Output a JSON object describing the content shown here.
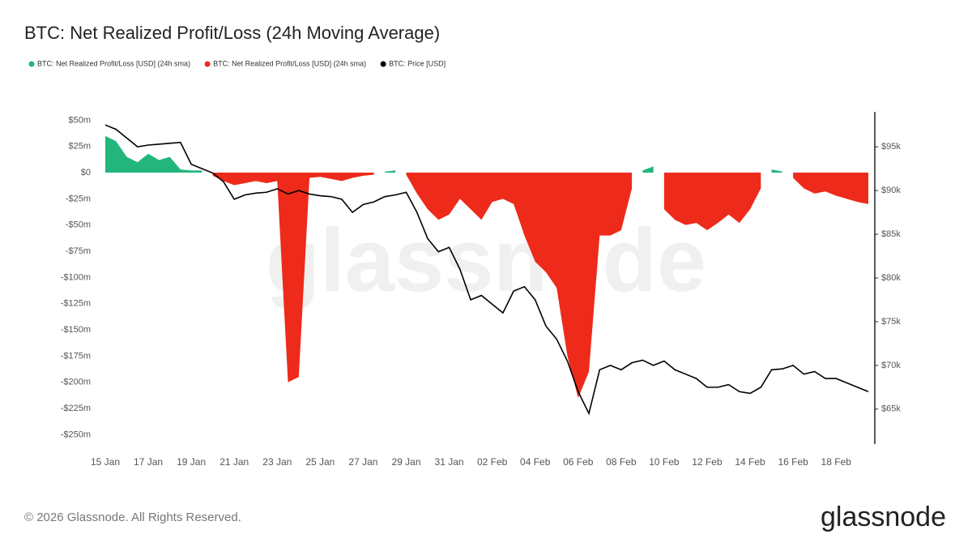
{
  "chart_data": {
    "type": "area",
    "title": "BTC: Net Realized Profit/Loss (24h Moving Average)",
    "watermark": "glassnode",
    "footer": "© 2026 Glassnode. All Rights Reserved.",
    "brand": "glassnode",
    "grid": false,
    "legend": "top-left",
    "categories": [
      "15 Jan",
      null,
      null,
      null,
      "17 Jan",
      null,
      null,
      null,
      "19 Jan",
      null,
      null,
      null,
      "21 Jan",
      null,
      null,
      null,
      "23 Jan",
      null,
      null,
      null,
      "25 Jan",
      null,
      null,
      null,
      "27 Jan",
      null,
      null,
      null,
      "29 Jan",
      null,
      null,
      null,
      "31 Jan",
      null,
      null,
      null,
      "02 Feb",
      null,
      null,
      null,
      "04 Feb",
      null,
      null,
      null,
      "06 Feb",
      null,
      null,
      null,
      "08 Feb",
      null,
      null,
      null,
      "10 Feb",
      null,
      null,
      null,
      "12 Feb",
      null,
      null,
      null,
      "14 Feb",
      null,
      null,
      null,
      "16 Feb",
      null,
      null,
      null,
      "18 Feb",
      null,
      null,
      null
    ],
    "ylim": [
      -259000000,
      58000000
    ],
    "yticks": [
      {
        "value": 50000000,
        "label": "$50m"
      },
      {
        "value": 25000000,
        "label": "$25m"
      },
      {
        "value": 0,
        "label": "$0"
      },
      {
        "value": -25000000,
        "label": "-$25m"
      },
      {
        "value": -50000000,
        "label": "-$50m"
      },
      {
        "value": -75000000,
        "label": "-$75m"
      },
      {
        "value": -100000000,
        "label": "-$100m"
      },
      {
        "value": -125000000,
        "label": "-$125m"
      },
      {
        "value": -150000000,
        "label": "-$150m"
      },
      {
        "value": -175000000,
        "label": "-$175m"
      },
      {
        "value": -200000000,
        "label": "-$200m"
      },
      {
        "value": -225000000,
        "label": "-$225m"
      },
      {
        "value": -250000000,
        "label": "-$250m"
      }
    ],
    "y2lim": [
      61000,
      99000
    ],
    "y2ticks": [
      {
        "value": 65000,
        "label": "$65k"
      },
      {
        "value": 70000,
        "label": "$70k"
      },
      {
        "value": 75000,
        "label": "$75k"
      },
      {
        "value": 80000,
        "label": "$80k"
      },
      {
        "value": 85000,
        "label": "$85k"
      },
      {
        "value": 90000,
        "label": "$90k"
      },
      {
        "value": 95000,
        "label": "$95k"
      }
    ],
    "series": [
      {
        "name": "BTC: Net Realized Profit/Loss [USD] (24h sma)",
        "color": "#22b67c",
        "values": [
          35000000,
          30000000,
          15000000,
          10000000,
          18000000,
          12000000,
          15000000,
          3000000,
          2000000,
          2000000,
          null,
          null,
          null,
          null,
          null,
          null,
          null,
          null,
          null,
          null,
          null,
          null,
          null,
          null,
          null,
          null,
          1000000,
          2000000,
          null,
          null,
          null,
          null,
          null,
          null,
          null,
          null,
          null,
          null,
          null,
          null,
          null,
          null,
          null,
          null,
          null,
          null,
          null,
          null,
          null,
          null,
          2000000,
          6000000,
          null,
          null,
          null,
          null,
          null,
          null,
          null,
          null,
          null,
          null,
          3000000,
          1000000,
          null,
          null,
          null,
          null,
          null,
          null,
          null,
          null
        ]
      },
      {
        "name": "BTC: Net Realized Profit/Loss [USD] (24h sma)",
        "color": "#ee2a1b",
        "values": [
          null,
          null,
          null,
          null,
          null,
          null,
          null,
          null,
          null,
          null,
          -3000000,
          -8000000,
          -12000000,
          -10000000,
          -8000000,
          -10000000,
          -8000000,
          -200000000,
          -195000000,
          -5000000,
          -4000000,
          -6000000,
          -8000000,
          -5000000,
          -3000000,
          -2000000,
          null,
          null,
          -2000000,
          -20000000,
          -35000000,
          -45000000,
          -40000000,
          -25000000,
          -35000000,
          -45000000,
          -28000000,
          -25000000,
          -30000000,
          -60000000,
          -85000000,
          -95000000,
          -110000000,
          -175000000,
          -215000000,
          -190000000,
          -60000000,
          -60000000,
          -55000000,
          -15000000,
          null,
          null,
          -35000000,
          -45000000,
          -50000000,
          -48000000,
          -55000000,
          -48000000,
          -40000000,
          -48000000,
          -35000000,
          -15000000,
          null,
          null,
          -5000000,
          -15000000,
          -20000000,
          -18000000,
          -22000000,
          -25000000,
          -28000000,
          -30000000
        ]
      },
      {
        "name": "BTC: Price [USD]",
        "color": "#000000",
        "axis": "y2",
        "type": "line",
        "values": [
          97500,
          97000,
          96000,
          95000,
          95200,
          95300,
          95400,
          95500,
          93000,
          92500,
          92000,
          91000,
          89000,
          89500,
          89700,
          89800,
          90200,
          89600,
          90000,
          89600,
          89400,
          89300,
          89000,
          87500,
          88400,
          88700,
          89300,
          89500,
          89800,
          87500,
          84500,
          83000,
          83500,
          81000,
          77500,
          78000,
          77000,
          76000,
          78500,
          79000,
          77500,
          74500,
          73000,
          70500,
          67000,
          64500,
          69500,
          70000,
          69500,
          70300,
          70600,
          70000,
          70500,
          69500,
          69000,
          68500,
          67500,
          67500,
          67800,
          67000,
          66800,
          67500,
          69500,
          69600,
          70000,
          69000,
          69300,
          68500,
          68500,
          68000,
          67500,
          67000
        ]
      }
    ]
  }
}
